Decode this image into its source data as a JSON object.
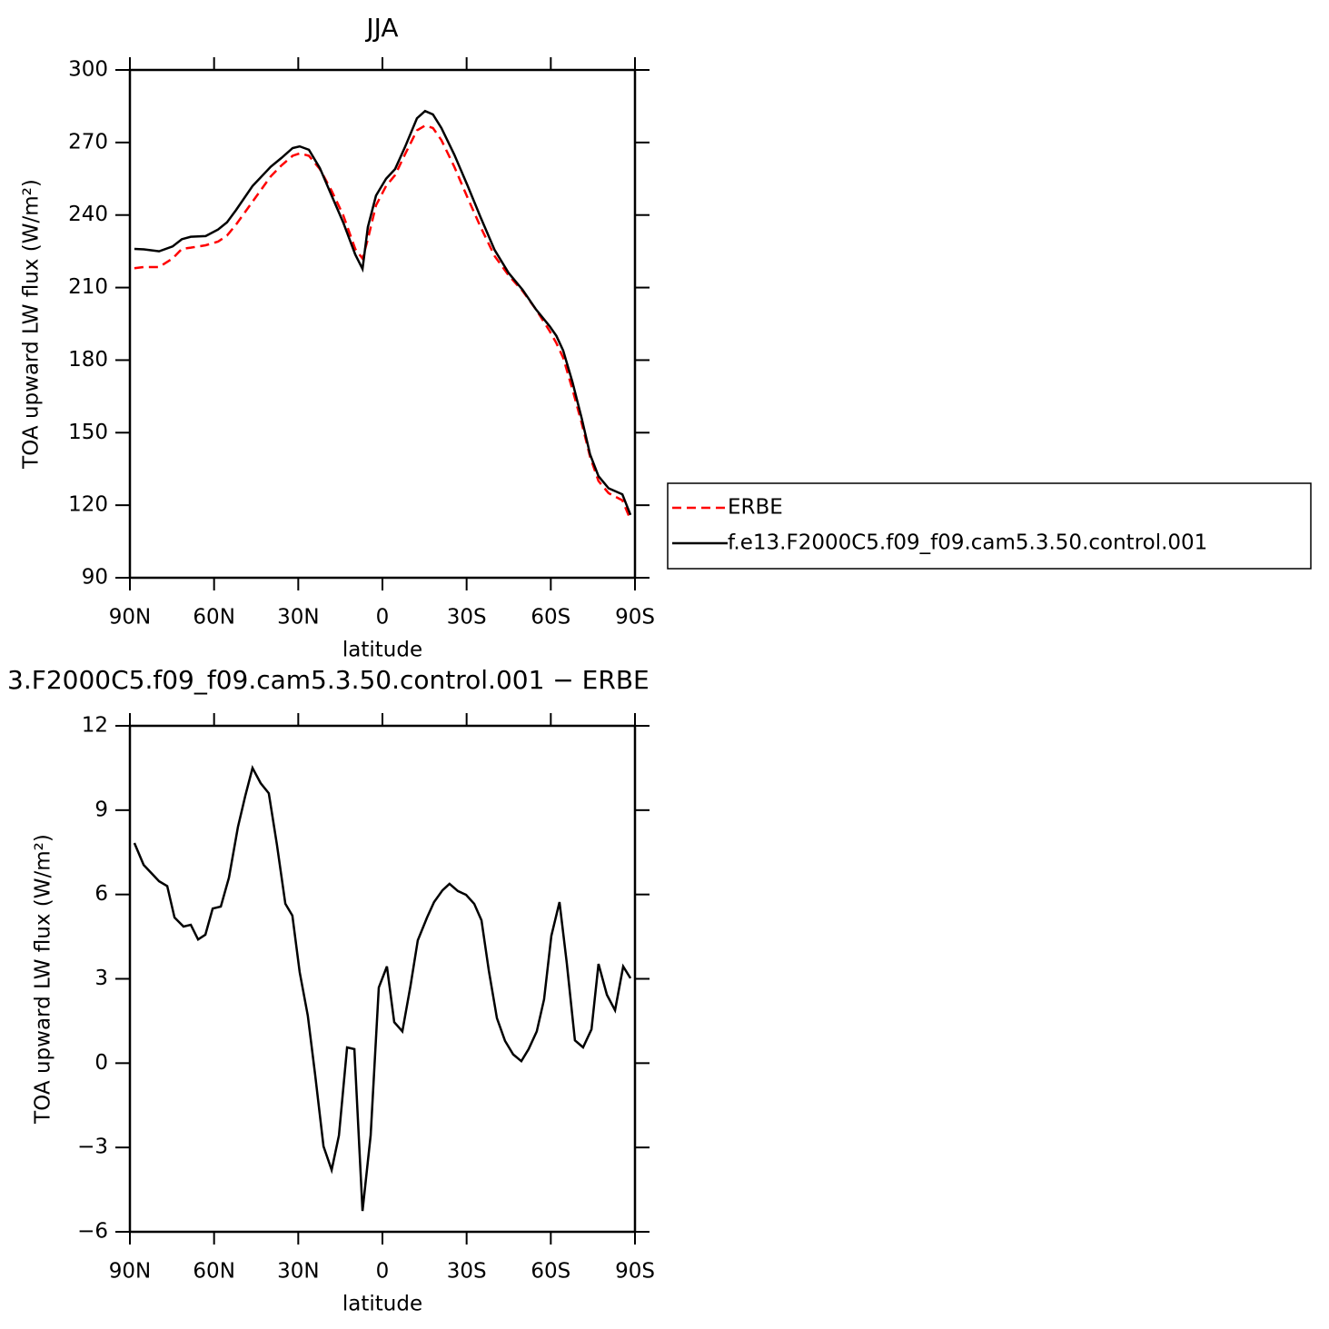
{
  "chart_data": [
    {
      "type": "line",
      "title": "JJA",
      "xlabel": "latitude",
      "ylabel": "TOA upward LW flux (W/m²)",
      "x": [
        88.4,
        85,
        79.6,
        74.8,
        71.5,
        68.3,
        63,
        58.6,
        55.4,
        52.2,
        46.3,
        39.8,
        36,
        32,
        29.5,
        26.2,
        22.3,
        18.1,
        14,
        9.7,
        7.1,
        5.2,
        2.3,
        -1.3,
        -4.5,
        -8,
        -12.3,
        -15.2,
        -18,
        -21,
        -25.6,
        -30.4,
        -35,
        -40,
        -45,
        -50,
        -54.7,
        -59.6,
        -62,
        -64.4,
        -67.7,
        -71,
        -74,
        -77,
        -80.6,
        -85.5,
        -88.4
      ],
      "series": [
        {
          "name": "ERBE",
          "color": "#ff0000",
          "linestyle": "dashed",
          "values": [
            218,
            218.5,
            218.5,
            222,
            226,
            226.5,
            227.5,
            229,
            231.5,
            236,
            245.5,
            256,
            260.5,
            264.5,
            265.5,
            264.5,
            259,
            250,
            240,
            226,
            222,
            230,
            244,
            252,
            256.5,
            265,
            275,
            277,
            276,
            271,
            260,
            247,
            235,
            223,
            215,
            208.5,
            201,
            192,
            187,
            181,
            168,
            154,
            140,
            130,
            125,
            122,
            114
          ]
        },
        {
          "name": "f.e13.F2000C5.f09_f09.cam5.3.50.control.001",
          "color": "#000000",
          "linestyle": "solid",
          "values": [
            226,
            225.8,
            225,
            227,
            230,
            231,
            231.3,
            234,
            237,
            242,
            252,
            260,
            263.6,
            267.7,
            268.4,
            267,
            259.4,
            248,
            237,
            223.7,
            217.7,
            235,
            248,
            255,
            259,
            268,
            280,
            283,
            281.6,
            276,
            265,
            252,
            239,
            225.5,
            216,
            209,
            201,
            194,
            190,
            184,
            171,
            156,
            141,
            132,
            127,
            124.5,
            116
          ]
        }
      ],
      "xlim": [
        90,
        -90
      ],
      "xticks": [
        {
          "value": 90,
          "label": "90N"
        },
        {
          "value": 60,
          "label": "60N"
        },
        {
          "value": 30,
          "label": "30N"
        },
        0,
        {
          "value": -30,
          "label": "30S"
        },
        {
          "value": -60,
          "label": "60S"
        },
        {
          "value": -90,
          "label": "90S"
        }
      ],
      "ylim": [
        90,
        300
      ],
      "yticks": [
        90,
        120,
        150,
        180,
        210,
        240,
        270,
        300
      ],
      "legend": "right"
    },
    {
      "type": "line",
      "title": "3.F2000C5.f09_f09.cam5.3.50.control.001  −  ERBE",
      "xlabel": "latitude",
      "ylabel": "TOA upward LW flux (W/m²)",
      "x": [
        88.4,
        85.1,
        79.6,
        76.7,
        74.1,
        70.9,
        68.3,
        65.7,
        63.1,
        60.5,
        57.6,
        54.7,
        51.5,
        48.9,
        46.3,
        43.4,
        40.5,
        37.6,
        34.6,
        32.1,
        29.5,
        26.6,
        24,
        21,
        18.1,
        15.5,
        12.6,
        10,
        7.1,
        4.2,
        1.3,
        -1.6,
        -4.2,
        -7.1,
        -10,
        -12.6,
        -15.9,
        -18.4,
        -21.4,
        -23.9,
        -26.9,
        -29.8,
        -32.7,
        -35.3,
        -37.9,
        -40.8,
        -43.7,
        -46.6,
        -49.5,
        -52.1,
        -55,
        -57.6,
        -60.2,
        -63.1,
        -65.7,
        -68.6,
        -71.5,
        -74.5,
        -77,
        -80,
        -82.9,
        -85.8,
        -88.4
      ],
      "color": "#000000",
      "values": [
        7.83,
        7.05,
        6.47,
        6.3,
        5.18,
        4.86,
        4.92,
        4.4,
        4.57,
        5.5,
        5.57,
        6.6,
        8.4,
        9.5,
        10.5,
        9.96,
        9.6,
        7.77,
        5.67,
        5.25,
        3.24,
        1.69,
        -0.4,
        -2.96,
        -3.8,
        -2.57,
        0.56,
        0.5,
        -5.26,
        -2.57,
        2.69,
        3.44,
        1.46,
        1.13,
        2.75,
        4.37,
        5.18,
        5.73,
        6.15,
        6.38,
        6.12,
        5.99,
        5.67,
        5.08,
        3.3,
        1.6,
        0.79,
        0.31,
        0.07,
        0.5,
        1.13,
        2.27,
        4.53,
        5.73,
        3.56,
        0.81,
        0.56,
        1.2,
        3.53,
        2.43,
        1.88,
        3.44,
        3.02
      ],
      "xlim": [
        90,
        -90
      ],
      "xticks": [
        {
          "value": 90,
          "label": "90N"
        },
        {
          "value": 60,
          "label": "60N"
        },
        {
          "value": 30,
          "label": "30N"
        },
        0,
        {
          "value": -30,
          "label": "30S"
        },
        {
          "value": -60,
          "label": "60S"
        },
        {
          "value": -90,
          "label": "90S"
        }
      ],
      "ylim": [
        -6,
        12
      ],
      "yticks": [
        {
          "value": -6,
          "label": "−6"
        },
        {
          "value": -3,
          "label": "−3"
        },
        0,
        3,
        6,
        9,
        12
      ]
    }
  ]
}
